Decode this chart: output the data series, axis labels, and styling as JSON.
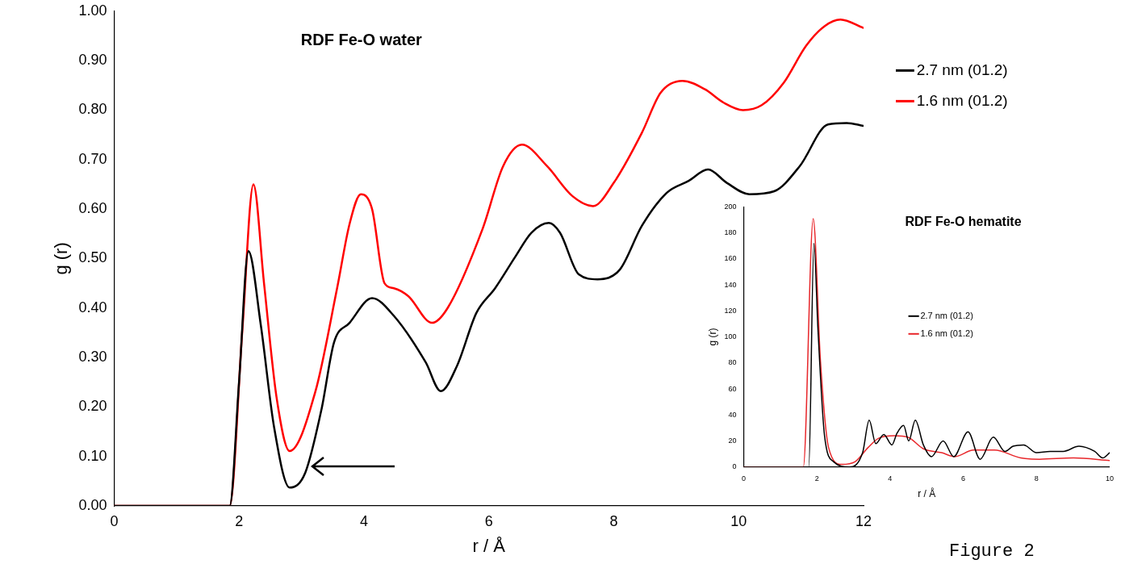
{
  "chart_data": [
    {
      "type": "line",
      "title": "RDF Fe-O water",
      "xlabel": "r / Å",
      "ylabel": "g (r)",
      "xlim": [
        0,
        12
      ],
      "xticks": [
        0,
        2,
        4,
        6,
        8,
        10,
        12
      ],
      "ylim": [
        0,
        1
      ],
      "yticks": [
        {
          "value": 0,
          "label": "0.00"
        },
        {
          "value": 0.1,
          "label": "0.10"
        },
        {
          "value": 0.2,
          "label": "0.20"
        },
        {
          "value": 0.3,
          "label": "0.30"
        },
        {
          "value": 0.4,
          "label": "0.40"
        },
        {
          "value": 0.5,
          "label": "0.50"
        },
        {
          "value": 0.6,
          "label": "0.60"
        },
        {
          "value": 0.7,
          "label": "0.70"
        },
        {
          "value": 0.8,
          "label": "0.80"
        },
        {
          "value": 0.9,
          "label": "0.90"
        },
        {
          "value": 1,
          "label": "1.00"
        }
      ],
      "grid": false,
      "legend": "top right",
      "marker": "none",
      "line_style": "solid",
      "annotations": [
        "Figure 2"
      ],
      "series": [
        {
          "name": "2.7 nm (01.2)",
          "color": "#000000",
          "x": [
            0,
            1.85,
            2.0,
            2.15,
            2.35,
            2.56,
            2.81,
            3.06,
            3.32,
            3.52,
            3.77,
            4.13,
            4.48,
            4.99,
            5.23,
            5.49,
            5.8,
            6.1,
            6.43,
            6.68,
            6.96,
            7.14,
            7.44,
            7.74,
            8.1,
            8.45,
            8.85,
            9.2,
            9.51,
            9.81,
            10.17,
            10.57,
            10.98,
            11.43,
            11.73,
            12.0
          ],
          "values": [
            0,
            0,
            0.25,
            0.515,
            0.364,
            0.16,
            0.037,
            0.067,
            0.195,
            0.33,
            0.37,
            0.42,
            0.384,
            0.29,
            0.232,
            0.283,
            0.39,
            0.44,
            0.505,
            0.552,
            0.572,
            0.552,
            0.468,
            0.458,
            0.478,
            0.566,
            0.633,
            0.657,
            0.68,
            0.653,
            0.63,
            0.636,
            0.687,
            0.771,
            0.774,
            0.768
          ]
        },
        {
          "name": "1.6 nm (01.2)",
          "color": "#ff0000",
          "x": [
            0,
            1.85,
            2.05,
            2.23,
            2.4,
            2.6,
            2.81,
            3.22,
            3.57,
            3.77,
            3.95,
            4.13,
            4.33,
            4.48,
            4.71,
            5.09,
            5.34,
            5.9,
            6.23,
            6.53,
            6.93,
            7.34,
            7.67,
            8.0,
            8.45,
            8.75,
            9.1,
            9.46,
            9.76,
            10.07,
            10.37,
            10.72,
            11.08,
            11.38,
            11.63,
            12.0
          ],
          "values": [
            0,
            0,
            0.35,
            0.65,
            0.45,
            0.22,
            0.111,
            0.23,
            0.44,
            0.57,
            0.63,
            0.6,
            0.45,
            0.44,
            0.424,
            0.37,
            0.4,
            0.56,
            0.687,
            0.73,
            0.687,
            0.626,
            0.606,
            0.653,
            0.754,
            0.835,
            0.859,
            0.842,
            0.815,
            0.8,
            0.81,
            0.855,
            0.93,
            0.97,
            0.983,
            0.966
          ]
        }
      ]
    },
    {
      "type": "line",
      "title": "RDF Fe-O hematite",
      "xlabel": "r / Å",
      "ylabel": "g (r)",
      "xlim": [
        0,
        10
      ],
      "xticks": [
        0,
        2,
        4,
        6,
        8,
        10
      ],
      "ylim": [
        0,
        200
      ],
      "yticks": [
        0,
        20,
        40,
        60,
        80,
        100,
        120,
        140,
        160,
        180,
        200
      ],
      "grid": false,
      "legend": "right",
      "marker": "none",
      "line_style": "solid",
      "series": [
        {
          "name": "2.7 nm (01.2)",
          "color": "#000000",
          "x": [
            0,
            1.7,
            1.78,
            1.92,
            2.03,
            2.21,
            2.46,
            2.89,
            3.25,
            3.43,
            3.61,
            3.83,
            4.05,
            4.19,
            4.37,
            4.51,
            4.69,
            4.91,
            5.13,
            5.45,
            5.74,
            6.13,
            6.46,
            6.82,
            7.14,
            7.36,
            7.65,
            8.0,
            8.37,
            8.73,
            9.16,
            9.59,
            9.81,
            10
          ],
          "values": [
            0,
            0,
            0,
            172,
            106,
            24,
            4,
            0,
            11,
            36,
            18,
            25,
            17,
            26,
            32,
            20,
            36,
            17,
            8,
            20,
            8,
            27,
            6,
            23,
            12,
            16,
            17,
            11,
            12,
            12,
            16,
            12,
            7,
            11
          ]
        },
        {
          "name": "1.6 nm (01.2)",
          "color": "#e8262a",
          "x": [
            0,
            1.63,
            1.9,
            2.1,
            2.32,
            2.68,
            3.04,
            3.4,
            3.68,
            4.12,
            4.48,
            4.91,
            5.41,
            5.77,
            6.28,
            6.85,
            7.57,
            8.08,
            9.01,
            10
          ],
          "values": [
            0,
            0,
            191,
            81,
            15,
            2,
            4,
            15,
            22,
            24,
            23,
            14,
            11,
            8,
            13,
            13,
            7,
            6,
            7,
            5
          ]
        }
      ]
    }
  ]
}
